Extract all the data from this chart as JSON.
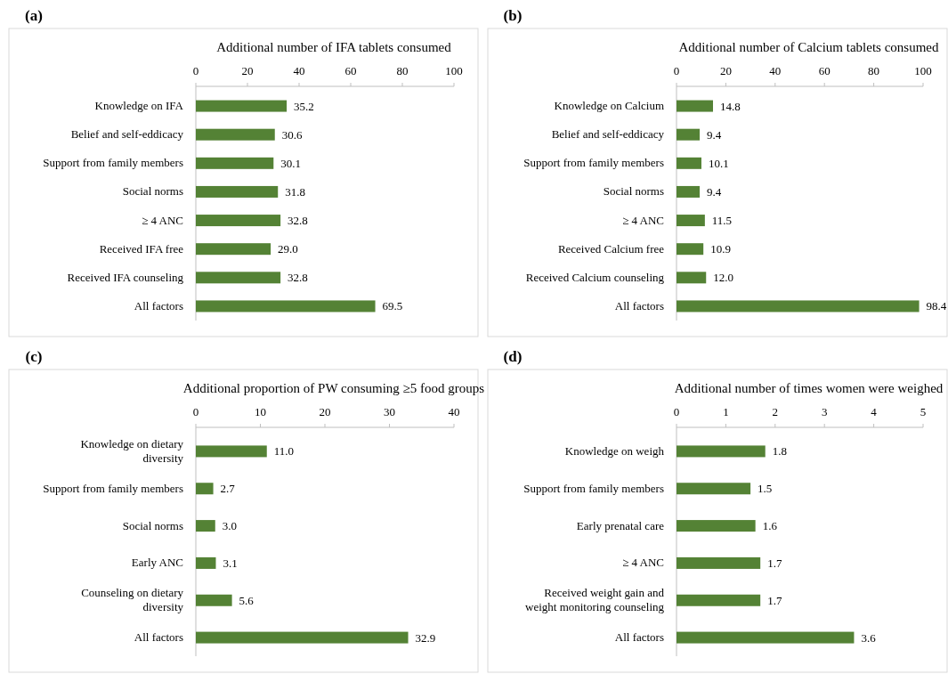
{
  "chart_data": [
    {
      "type": "bar",
      "orientation": "horizontal",
      "title": "Additional number of IFA tablets consumed",
      "annotations": [
        "(a)"
      ],
      "categories": [
        "Knowledge on IFA",
        "Belief and self-eddicacy",
        "Support from family members",
        "Social norms",
        "≥ 4 ANC",
        "Received IFA free",
        "Received IFA counseling",
        "All factors"
      ],
      "values": [
        35.2,
        30.6,
        30.1,
        31.8,
        32.8,
        29.0,
        32.8,
        69.5
      ],
      "value_labels": [
        "35.2",
        "30.6",
        "30.1",
        "31.8",
        "32.8",
        "29.0",
        "32.8",
        "69.5"
      ],
      "color": "#548235",
      "xlim": [
        0,
        100
      ],
      "xticks": [
        0,
        20,
        40,
        60,
        80,
        100
      ]
    },
    {
      "type": "bar",
      "orientation": "horizontal",
      "title": "Additional number of Calcium tablets consumed",
      "annotations": [
        "(b)"
      ],
      "categories": [
        "Knowledge on Calcium",
        "Belief and self-eddicacy",
        "Support from family members",
        "Social norms",
        "≥ 4 ANC",
        "Received Calcium free",
        "Received Calcium counseling",
        "All factors"
      ],
      "values": [
        14.8,
        9.4,
        10.1,
        9.4,
        11.5,
        10.9,
        12.0,
        98.4
      ],
      "value_labels": [
        "14.8",
        "9.4",
        "10.1",
        "9.4",
        "11.5",
        "10.9",
        "12.0",
        "98.4"
      ],
      "color": "#548235",
      "xlim": [
        0,
        100
      ],
      "xticks": [
        0,
        20,
        40,
        60,
        80,
        100
      ]
    },
    {
      "type": "bar",
      "orientation": "horizontal",
      "title": "Additional proportion of PW consuming ≥5 food groups",
      "annotations": [
        "(c)"
      ],
      "categories": [
        "Knowledge on dietary diversity",
        "Support from family members",
        "Social norms",
        "Early ANC",
        "Counseling on dietary diversity",
        "All factors"
      ],
      "values": [
        11.0,
        2.7,
        3.0,
        3.1,
        5.6,
        32.9
      ],
      "value_labels": [
        "11.0",
        "2.7",
        "3.0",
        "3.1",
        "5.6",
        "32.9"
      ],
      "color": "#548235",
      "xlim": [
        0,
        40
      ],
      "xticks": [
        0,
        10,
        20,
        30,
        40
      ]
    },
    {
      "type": "bar",
      "orientation": "horizontal",
      "title": "Additional number of times women were weighed",
      "annotations": [
        "(d)"
      ],
      "categories": [
        "Knowledge on weigh",
        "Support from family members",
        "Early prenatal care",
        "≥ 4 ANC",
        "Received weight gain and weight monitoring counseling",
        "All factors"
      ],
      "values": [
        1.8,
        1.5,
        1.6,
        1.7,
        1.7,
        3.6
      ],
      "value_labels": [
        "1.8",
        "1.5",
        "1.6",
        "1.7",
        "1.7",
        "3.6"
      ],
      "color": "#548235",
      "xlim": [
        0,
        5
      ],
      "xticks": [
        0,
        1,
        2,
        3,
        4,
        5
      ]
    }
  ]
}
